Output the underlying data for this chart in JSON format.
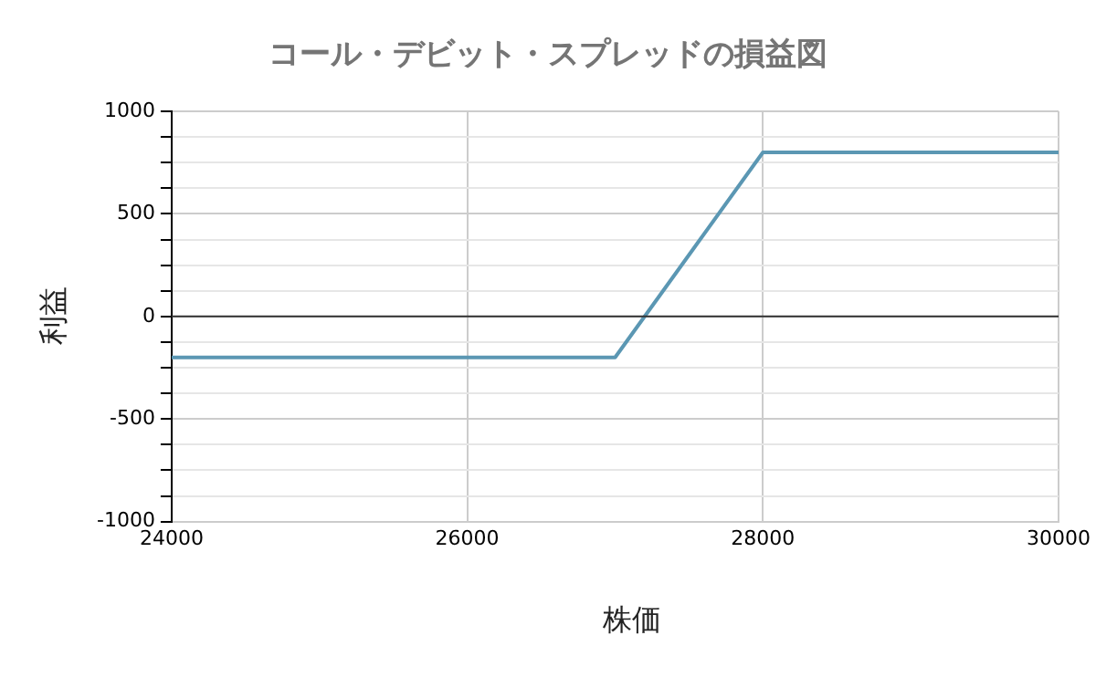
{
  "chart_data": {
    "type": "line",
    "title": "コール・デビット・スプレッドの損益図",
    "xlabel": "株価",
    "ylabel": "利益",
    "x": [
      24000,
      27000,
      28000,
      30000
    ],
    "series": [
      {
        "color": "#5b97b3",
        "values": [
          -200,
          -200,
          800,
          800
        ]
      }
    ],
    "xlim": [
      24000,
      30000
    ],
    "xticks": [
      24000,
      26000,
      28000,
      30000
    ],
    "ylim": [
      -1000,
      1000
    ],
    "yticks": [
      -1000,
      {
        "value": -875,
        "label": null
      },
      {
        "value": -750,
        "label": null
      },
      {
        "value": -625,
        "label": null
      },
      -500,
      {
        "value": -375,
        "label": null
      },
      {
        "value": -250,
        "label": null
      },
      {
        "value": -125,
        "label": null
      },
      0,
      {
        "value": 125,
        "label": null
      },
      {
        "value": 250,
        "label": null
      },
      {
        "value": 375,
        "label": null
      },
      500,
      {
        "value": 625,
        "label": null
      },
      {
        "value": 750,
        "label": null
      },
      {
        "value": 875,
        "label": null
      },
      1000
    ],
    "ref_lines": [
      {
        "axis": "y",
        "value": 0,
        "color": "#333333"
      }
    ],
    "grid": true,
    "legend": false,
    "marker": "none",
    "line_style": "solid"
  }
}
